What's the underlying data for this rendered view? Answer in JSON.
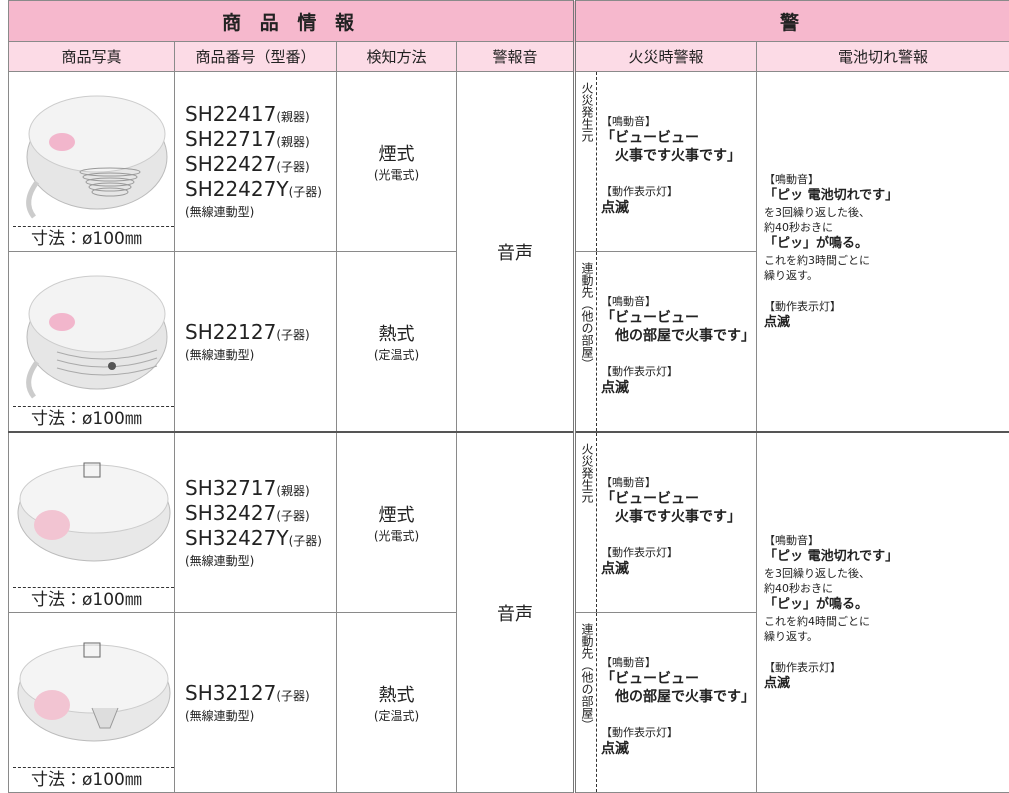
{
  "header": {
    "group_left": "商 品 情 報",
    "group_right": "警"
  },
  "columns": [
    "商品写真",
    "商品番号（型番）",
    "検知方法",
    "警報音",
    "火災時警報",
    "電池切れ警報"
  ],
  "groups": [
    {
      "sound": "音声",
      "battery": {
        "sound_label": "【鳴動音】",
        "sound": "「ピッ 電池切れです」",
        "desc": [
          "を3回繰り返した後、",
          "約40秒おきに"
        ],
        "beep": "「ピッ」が鳴る。",
        "repeat": [
          "これを約3時間ごとに",
          "繰り返す。"
        ],
        "lamp_label": "【動作表示灯】",
        "lamp": "点滅"
      },
      "rows": [
        {
          "size": "寸法：ø100㎜",
          "models": [
            {
              "model": "SH22417",
              "role": "(親器)"
            },
            {
              "model": "SH22717",
              "role": "(親器)"
            },
            {
              "model": "SH22427",
              "role": "(子器)"
            },
            {
              "model": "SH22427Y",
              "role": "(子器)"
            }
          ],
          "note": "(無線連動型)",
          "method": "煙式",
          "method_type": "(光電式)",
          "fire": {
            "place": "火災発生元",
            "sound_label": "【鳴動音】",
            "sound": [
              "「ビュービュー",
              "火事です火事です」"
            ],
            "lamp_label": "【動作表示灯】",
            "lamp": "点滅"
          }
        },
        {
          "size": "寸法：ø100㎜",
          "models": [
            {
              "model": "SH22127",
              "role": "(子器)"
            }
          ],
          "note": "(無線連動型)",
          "method": "熱式",
          "method_type": "(定温式)",
          "fire": {
            "place": "連動先（他の部屋）",
            "sound_label": "【鳴動音】",
            "sound": [
              "「ビュービュー",
              "他の部屋で火事です」"
            ],
            "lamp_label": "【動作表示灯】",
            "lamp": "点滅"
          }
        }
      ]
    },
    {
      "sound": "音声",
      "battery": {
        "sound_label": "【鳴動音】",
        "sound": "「ピッ 電池切れです」",
        "desc": [
          "を3回繰り返した後、",
          "約40秒おきに"
        ],
        "beep": "「ピッ」が鳴る。",
        "repeat": [
          "これを約4時間ごとに",
          "繰り返す。"
        ],
        "lamp_label": "【動作表示灯】",
        "lamp": "点滅"
      },
      "rows": [
        {
          "size": "寸法：ø100㎜",
          "models": [
            {
              "model": "SH32717",
              "role": "(親器)"
            },
            {
              "model": "SH32427",
              "role": "(子器)"
            },
            {
              "model": "SH32427Y",
              "role": "(子器)"
            }
          ],
          "note": "(無線連動型)",
          "method": "煙式",
          "method_type": "(光電式)",
          "fire": {
            "place": "火災発生元",
            "sound_label": "【鳴動音】",
            "sound": [
              "「ビュービュー",
              "火事です火事です」"
            ],
            "lamp_label": "【動作表示灯】",
            "lamp": "点滅"
          }
        },
        {
          "size": "寸法：ø100㎜",
          "models": [
            {
              "model": "SH32127",
              "role": "(子器)"
            }
          ],
          "note": "(無線連動型)",
          "method": "熱式",
          "method_type": "(定温式)",
          "fire": {
            "place": "連動先（他の部屋）",
            "sound_label": "【鳴動音】",
            "sound": [
              "「ビュービュー",
              "他の部屋で火事です」"
            ],
            "lamp_label": "【動作表示灯】",
            "lamp": "点滅"
          }
        }
      ]
    }
  ]
}
